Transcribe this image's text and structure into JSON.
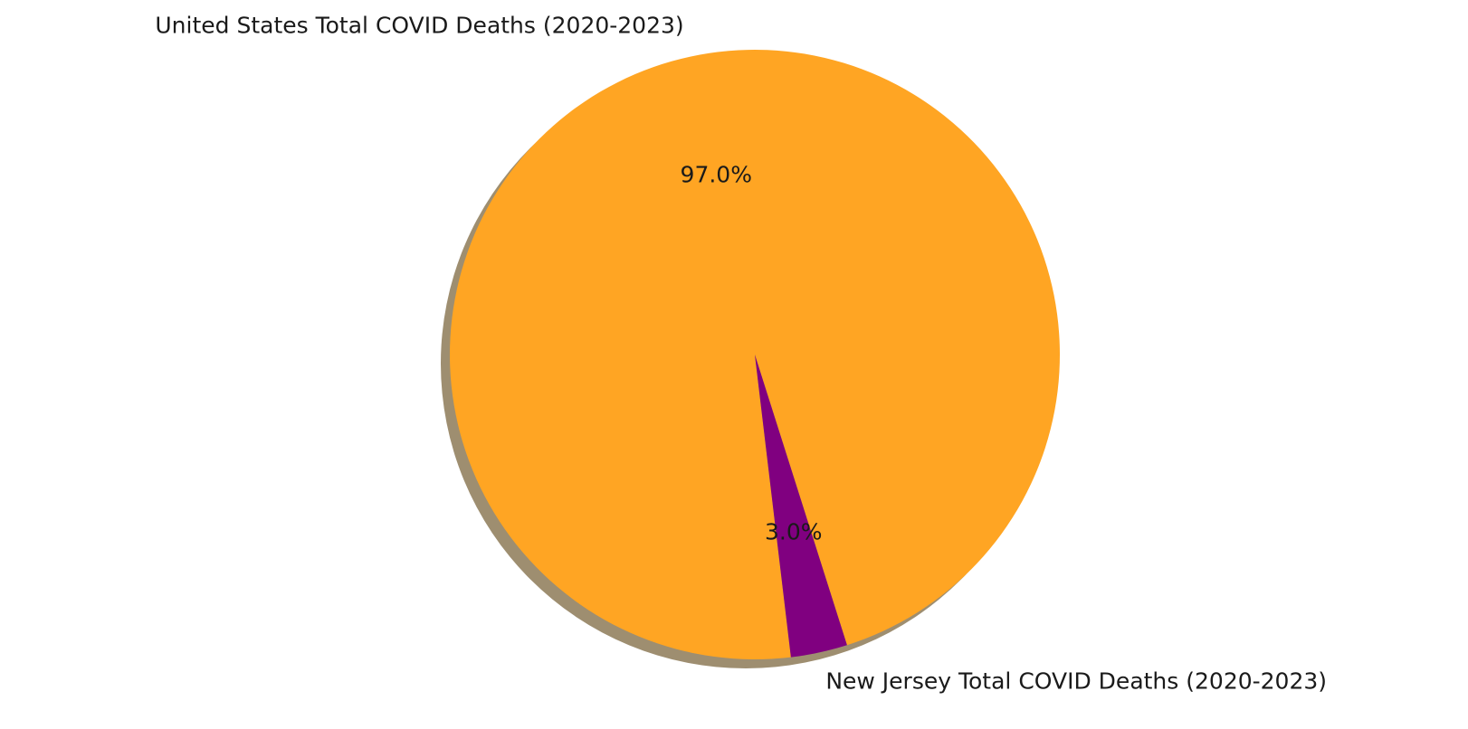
{
  "chart_data": {
    "type": "pie",
    "shadow": true,
    "colors_note": "slice colors in order",
    "slices": [
      {
        "label": "United States Total COVID Deaths (2020-2023)",
        "percent": 97.0,
        "percent_label": "97.0%",
        "color": "#ffa523"
      },
      {
        "label": "New Jersey Total COVID Deaths (2020-2023)",
        "percent": 3.0,
        "percent_label": "3.0%",
        "color": "#800080"
      }
    ],
    "start_angle_deg": -72.4,
    "direction": "counterclockwise",
    "shadow_color": "#9e8e70"
  }
}
